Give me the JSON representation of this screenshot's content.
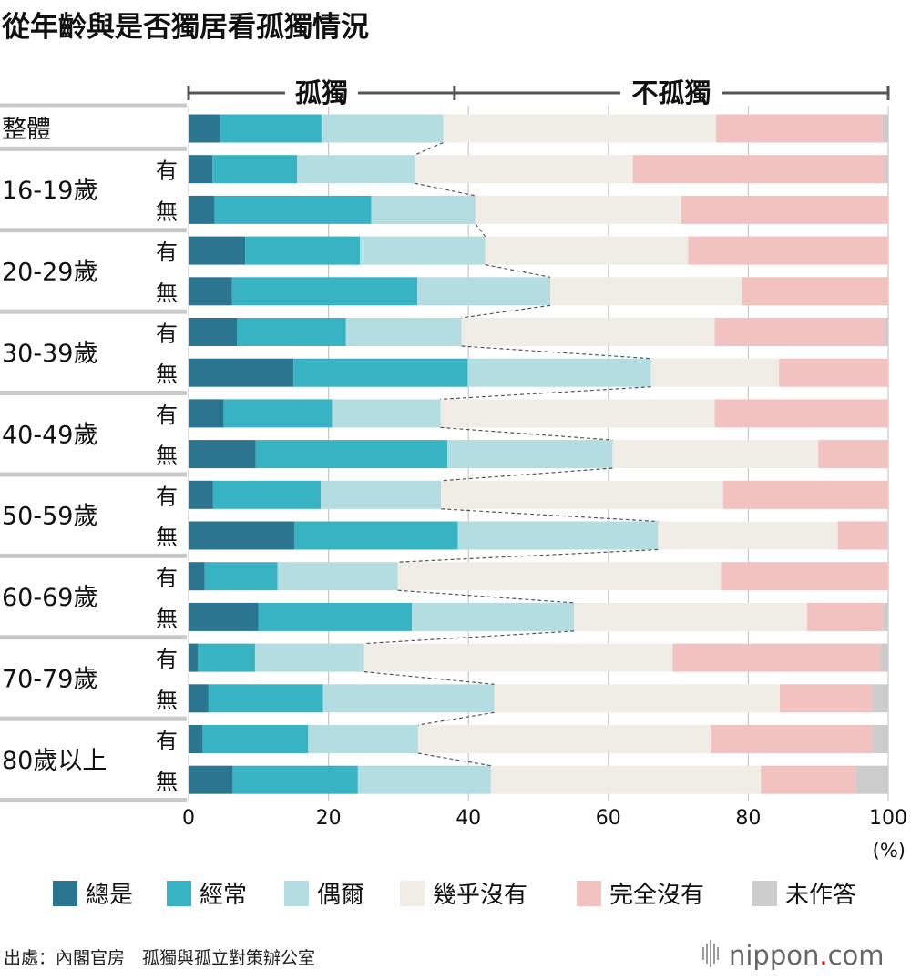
{
  "title": "從年齡與是否獨居看孤獨情況",
  "source": "出處：內閣官房　孤獨與孤立對策辦公室",
  "brand": {
    "name": "nippon",
    "dot": ".",
    "suffix": "com",
    "accent": "#e60012"
  },
  "chart_data": {
    "type": "bar",
    "orientation": "horizontal",
    "stacked": true,
    "xlim": [
      0,
      100
    ],
    "x_ticks": [
      0,
      20,
      40,
      60,
      80,
      100
    ],
    "x_unit": "(%)",
    "grid": true,
    "legend_position": "bottom",
    "brackets": [
      {
        "label": "孤獨",
        "from": 0,
        "to": 38
      },
      {
        "label": "不孤獨",
        "from": 38,
        "to": 100
      }
    ],
    "groups": [
      {
        "label": "整體",
        "rows": [
          ""
        ]
      },
      {
        "label": "16-19歲",
        "rows": [
          "有",
          "無"
        ]
      },
      {
        "label": "20-29歲",
        "rows": [
          "有",
          "無"
        ]
      },
      {
        "label": "30-39歲",
        "rows": [
          "有",
          "無"
        ]
      },
      {
        "label": "40-49歲",
        "rows": [
          "有",
          "無"
        ]
      },
      {
        "label": "50-59歲",
        "rows": [
          "有",
          "無"
        ]
      },
      {
        "label": "60-69歲",
        "rows": [
          "有",
          "無"
        ]
      },
      {
        "label": "70-79歲",
        "rows": [
          "有",
          "無"
        ]
      },
      {
        "label": "80歲以上",
        "rows": [
          "有",
          "無"
        ]
      }
    ],
    "series": [
      {
        "name": "總是",
        "color": "#2b7591",
        "values": [
          4.5,
          3.4,
          3.7,
          8.1,
          6.2,
          6.9,
          15.0,
          5.0,
          9.6,
          3.5,
          15.1,
          2.3,
          10.0,
          1.3,
          2.8,
          2.0,
          6.3
        ]
      },
      {
        "name": "經常",
        "color": "#37b3c3",
        "values": [
          14.5,
          12.1,
          22.4,
          16.4,
          26.5,
          15.6,
          24.9,
          15.5,
          27.4,
          15.4,
          23.4,
          10.4,
          21.9,
          8.2,
          16.4,
          15.1,
          17.9
        ]
      },
      {
        "name": "偶爾",
        "color": "#b3dde1",
        "values": [
          17.4,
          16.8,
          14.9,
          17.9,
          19.0,
          16.5,
          26.2,
          15.5,
          23.6,
          17.2,
          28.6,
          17.2,
          23.2,
          15.6,
          24.5,
          15.7,
          19.0
        ]
      },
      {
        "name": "幾乎沒有",
        "color": "#f0ede6",
        "values": [
          39.0,
          31.2,
          29.4,
          29.0,
          27.4,
          36.2,
          18.3,
          39.2,
          29.4,
          40.3,
          25.7,
          46.2,
          33.3,
          44.1,
          40.8,
          41.8,
          38.6
        ]
      },
      {
        "name": "完全沒有",
        "color": "#f2c2c1",
        "values": [
          23.8,
          36.1,
          29.6,
          28.6,
          20.9,
          24.4,
          15.6,
          24.8,
          10.0,
          23.6,
          7.1,
          23.9,
          10.9,
          29.7,
          13.3,
          23.2,
          13.6
        ]
      },
      {
        "name": "未作答",
        "color": "#cccccc",
        "values": [
          0.8,
          0.4,
          0.0,
          0.0,
          0.0,
          0.4,
          0.0,
          0.0,
          0.0,
          0.0,
          0.1,
          0.0,
          0.7,
          1.1,
          2.2,
          2.2,
          4.6
        ]
      }
    ]
  }
}
